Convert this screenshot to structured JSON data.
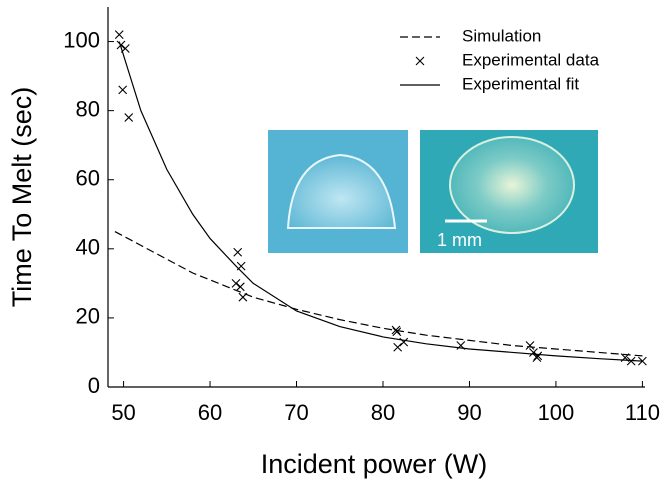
{
  "chart_data": {
    "type": "line",
    "xlabel": "Incident power (W)",
    "ylabel": "Time To Melt (sec)",
    "xlim": [
      48.2,
      110.3
    ],
    "ylim": [
      0,
      110
    ],
    "xticks": [
      50,
      60,
      70,
      80,
      90,
      100,
      110
    ],
    "yticks": [
      0,
      20,
      40,
      60,
      80,
      100
    ],
    "legend": "upper right",
    "annotation": "1 mm",
    "series": [
      {
        "name": "Simulation",
        "type": "line",
        "dash": "dashed",
        "color": "#000000",
        "x": [
          49,
          52,
          55,
          58,
          60,
          63,
          65,
          70,
          75,
          80,
          85,
          90,
          95,
          100,
          105,
          110
        ],
        "values": [
          45,
          41,
          37,
          33,
          31,
          28,
          26,
          22.5,
          19.5,
          17,
          15,
          13.5,
          12,
          11,
          10,
          9
        ]
      },
      {
        "name": "Experimental data",
        "type": "scatter",
        "marker": "x",
        "color": "#000000",
        "x": [
          49.5,
          49.7,
          50.2,
          49.9,
          50.6,
          63.2,
          63.6,
          63.0,
          63.5,
          63.8,
          81.5,
          81.6,
          81.7,
          82.4,
          89.0,
          97.0,
          97.4,
          97.8,
          97.9,
          108.0,
          108.7,
          110.0
        ],
        "values": [
          102,
          99,
          98,
          86,
          78,
          39,
          35,
          30,
          29,
          26,
          16.5,
          16,
          11.5,
          13,
          12,
          12,
          10,
          8.5,
          9,
          8.5,
          7.5,
          7.5
        ]
      },
      {
        "name": "Experimental fit",
        "type": "line",
        "dash": "solid",
        "color": "#000000",
        "x": [
          49.5,
          52,
          55,
          58,
          60,
          63,
          65,
          70,
          75,
          80,
          85,
          90,
          95,
          100,
          105,
          110
        ],
        "values": [
          100,
          80,
          63,
          50,
          43,
          35,
          30,
          22,
          17.5,
          14.5,
          12.5,
          11,
          10,
          9,
          8.2,
          7.5
        ]
      }
    ]
  }
}
